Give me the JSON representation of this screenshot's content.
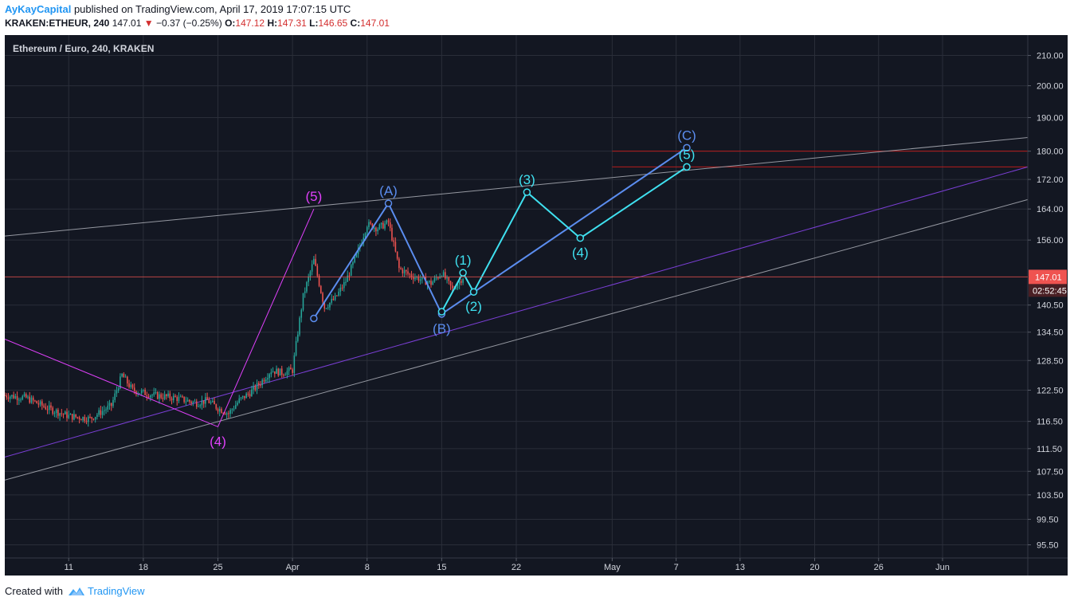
{
  "header": {
    "author": "AyKayCapital",
    "published": "published on TradingView.com, April 17, 2019 17:07:15 UTC"
  },
  "quote": {
    "symbol": "KRAKEN:ETHEUR, 240",
    "last": "147.01",
    "change": "−0.37 (−0.25%)",
    "o_label": "O:",
    "o": "147.12",
    "h_label": "H:",
    "h": "147.31",
    "l_label": "L:",
    "l": "146.65",
    "c_label": "C:",
    "c": "147.01"
  },
  "footer": {
    "created_with": "Created with",
    "brand": "TradingView"
  },
  "colors": {
    "background": "#131722",
    "grid": "#2a2e39",
    "up": "#26a69a",
    "down": "#ef5350",
    "price_line": "#ef5350",
    "wave_blue": "#5b8def",
    "wave_cyan": "#3fe1f0",
    "wave_magenta": "#e040fb",
    "channel": "#9598a1",
    "purple_line": "#7b3fd6",
    "resistance": "#b71c1c"
  },
  "chart_data": {
    "type": "candlestick",
    "title": "Ethereum / Euro, 240, KRAKEN",
    "symbol": "ETHEUR",
    "exchange": "KRAKEN",
    "interval": "240",
    "x_ticks": [
      "11",
      "18",
      "25",
      "Apr",
      "8",
      "15",
      "22",
      "May",
      "7",
      "13",
      "20",
      "26",
      "Jun"
    ],
    "y_ticks": [
      "210.00",
      "200.00",
      "190.00",
      "180.00",
      "172.00",
      "164.00",
      "156.00",
      "140.50",
      "134.50",
      "128.50",
      "122.50",
      "116.50",
      "111.50",
      "107.50",
      "103.50",
      "99.50",
      "95.50"
    ],
    "ylim": [
      93.5,
      217
    ],
    "last_price": "147.01",
    "countdown": "02:52:45",
    "price_path": [
      [
        "2019-03-05",
        121.5
      ],
      [
        "2019-03-07",
        121.0
      ],
      [
        "2019-03-09",
        119.0
      ],
      [
        "2019-03-11",
        117.5
      ],
      [
        "2019-03-13",
        117.0
      ],
      [
        "2019-03-15",
        119.5
      ],
      [
        "2019-03-16",
        125.5
      ],
      [
        "2019-03-17",
        122.5
      ],
      [
        "2019-03-19",
        121.5
      ],
      [
        "2019-03-21",
        121.0
      ],
      [
        "2019-03-23",
        120.0
      ],
      [
        "2019-03-24",
        120.5
      ],
      [
        "2019-03-25",
        119.0
      ],
      [
        "2019-03-26",
        118.0
      ],
      [
        "2019-03-27",
        120.5
      ],
      [
        "2019-03-28",
        122.0
      ],
      [
        "2019-03-29",
        124.0
      ],
      [
        "2019-03-30",
        126.5
      ],
      [
        "2019-03-31",
        126.0
      ],
      [
        "2019-04-01",
        126.5
      ],
      [
        "2019-04-02",
        142.5
      ],
      [
        "2019-04-03",
        151.0
      ],
      [
        "2019-04-04",
        140.0
      ],
      [
        "2019-04-05",
        142.0
      ],
      [
        "2019-04-06",
        146.0
      ],
      [
        "2019-04-07",
        152.0
      ],
      [
        "2019-04-08",
        160.0
      ],
      [
        "2019-04-09",
        159.0
      ],
      [
        "2019-04-10",
        160.5
      ],
      [
        "2019-04-11",
        149.0
      ],
      [
        "2019-04-12",
        147.5
      ],
      [
        "2019-04-13",
        146.5
      ],
      [
        "2019-04-14",
        145.5
      ],
      [
        "2019-04-15",
        148.0
      ],
      [
        "2019-04-16",
        144.0
      ],
      [
        "2019-04-17",
        147.0
      ]
    ],
    "waves": [
      {
        "name": "correction",
        "color": "blue",
        "points": [
          [
            "2019-04-03",
            137.5
          ],
          [
            "2019-04-10",
            165.5
          ],
          [
            "2019-04-15",
            138.5
          ],
          [
            "2019-05-08",
            181.0
          ]
        ]
      },
      {
        "name": "impulse",
        "color": "cyan",
        "points": [
          [
            "2019-04-15",
            139.0
          ],
          [
            "2019-04-17",
            148.0
          ],
          [
            "2019-04-18",
            143.5
          ],
          [
            "2019-04-23",
            168.5
          ],
          [
            "2019-04-28",
            156.5
          ],
          [
            "2019-05-08",
            175.5
          ]
        ]
      },
      {
        "name": "prior",
        "color": "magenta",
        "points": [
          [
            "2019-03-05",
            133.0
          ],
          [
            "2019-03-25",
            115.5
          ],
          [
            "2019-04-03",
            164.0
          ]
        ]
      }
    ],
    "wave_labels": [
      {
        "text": "(5)",
        "date": "2019-04-03",
        "price": 164.0,
        "color": "magenta",
        "pos": "above"
      },
      {
        "text": "(4)",
        "date": "2019-03-25",
        "price": 115.5,
        "color": "magenta",
        "pos": "below"
      },
      {
        "text": "(A)",
        "date": "2019-04-10",
        "price": 165.5,
        "color": "blue",
        "pos": "above"
      },
      {
        "text": "(B)",
        "date": "2019-04-15",
        "price": 138.5,
        "color": "blue",
        "pos": "below"
      },
      {
        "text": "(C)",
        "date": "2019-05-08",
        "price": 181.0,
        "color": "blue",
        "pos": "above"
      },
      {
        "text": "(1)",
        "date": "2019-04-17",
        "price": 148.0,
        "color": "cyan",
        "pos": "above"
      },
      {
        "text": "(2)",
        "date": "2019-04-18",
        "price": 143.5,
        "color": "cyan",
        "pos": "below"
      },
      {
        "text": "(3)",
        "date": "2019-04-23",
        "price": 168.5,
        "color": "cyan",
        "pos": "above"
      },
      {
        "text": "(4)",
        "date": "2019-04-28",
        "price": 156.5,
        "color": "cyan",
        "pos": "below"
      },
      {
        "text": "(5)",
        "date": "2019-05-08",
        "price": 175.5,
        "color": "cyan",
        "pos": "above"
      }
    ],
    "trendlines": [
      {
        "name": "upper-channel",
        "color": "channel",
        "from": [
          "2019-03-05",
          157.0
        ],
        "to": [
          "2019-06-09",
          184.0
        ]
      },
      {
        "name": "lower-channel",
        "color": "channel",
        "from": [
          "2019-03-05",
          106.0
        ],
        "to": [
          "2019-06-09",
          166.5
        ]
      },
      {
        "name": "purple-support",
        "color": "purple_line",
        "from": [
          "2019-03-05",
          110.0
        ],
        "to": [
          "2019-06-09",
          175.5
        ]
      }
    ],
    "horizontal_levels": [
      {
        "price": 180.0,
        "from": "2019-05-01",
        "color": "resistance"
      },
      {
        "price": 175.5,
        "from": "2019-05-01",
        "color": "resistance"
      }
    ]
  }
}
